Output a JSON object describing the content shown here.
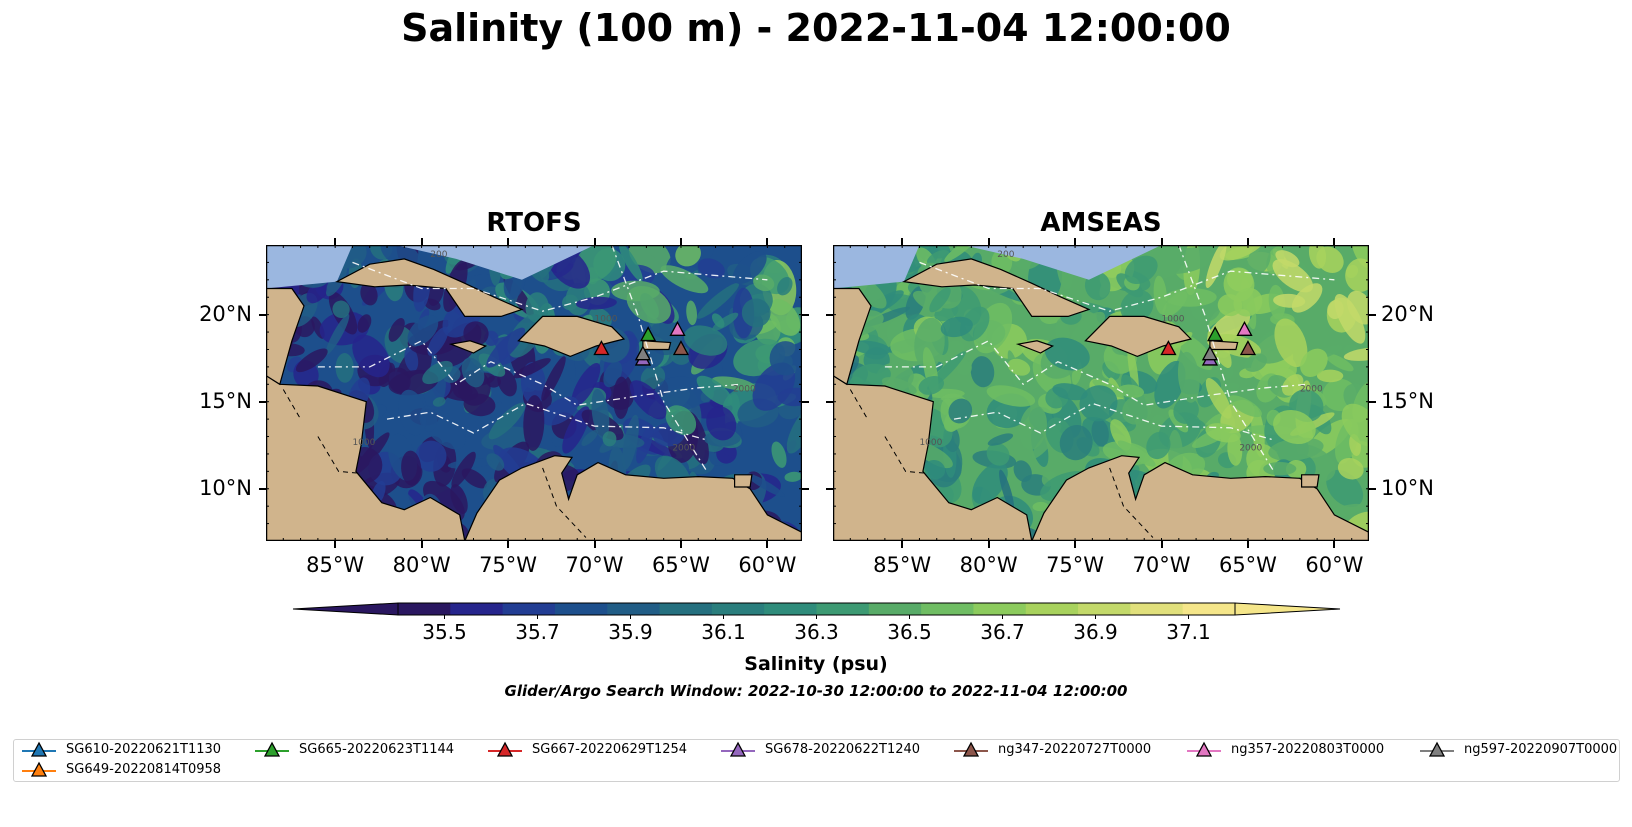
{
  "title": "Salinity (100 m) - 2022-11-04 12:00:00",
  "panels": [
    {
      "title": "RTOFS"
    },
    {
      "title": "AMSEAS"
    }
  ],
  "axes": {
    "x_ticks": [
      "85°W",
      "80°W",
      "75°W",
      "70°W",
      "65°W",
      "60°W"
    ],
    "y_ticks": [
      "20°N",
      "15°N",
      "10°N"
    ],
    "lon_range": [
      -89,
      -58
    ],
    "lat_range": [
      7,
      24
    ]
  },
  "colorbar": {
    "label": "Salinity (psu)",
    "ticks": [
      "35.5",
      "35.7",
      "35.9",
      "36.1",
      "36.3",
      "36.5",
      "36.7",
      "36.9",
      "37.1"
    ],
    "range": [
      35.4,
      37.2
    ],
    "extend": "both",
    "colors": [
      "#2a1760",
      "#26258c",
      "#223d93",
      "#1d4f8c",
      "#215d86",
      "#25707f",
      "#2a7e7d",
      "#2f8c7b",
      "#3d9a73",
      "#58ab68",
      "#6fbd63",
      "#8ccb5d",
      "#a8d25d",
      "#c3d96a",
      "#e1e07c",
      "#f5e68a"
    ]
  },
  "contour_labels": [
    "200",
    "1000",
    "2000",
    "1000",
    "2000"
  ],
  "search_window": "Glider/Argo Search Window: 2022-10-30 12:00:00 to 2022-11-04 12:00:00",
  "colors": {
    "land": "#d0b48c",
    "ocean_fill": "#9bb7e0",
    "coast": "#000000"
  },
  "legend": [
    {
      "label": "SG610-20220621T1130",
      "color": "#1f77b4",
      "icon": "triangle-marker-icon"
    },
    {
      "label": "SG665-20220623T1144",
      "color": "#2ca02c",
      "icon": "triangle-marker-icon"
    },
    {
      "label": "SG667-20220629T1254",
      "color": "#d62728",
      "icon": "triangle-marker-icon"
    },
    {
      "label": "SG678-20220622T1240",
      "color": "#9467bd",
      "icon": "triangle-marker-icon"
    },
    {
      "label": "ng347-20220727T0000",
      "color": "#8c564b",
      "icon": "triangle-marker-icon"
    },
    {
      "label": "ng357-20220803T0000",
      "color": "#e377c2",
      "icon": "triangle-marker-icon"
    },
    {
      "label": "ng597-20220907T0000",
      "color": "#7f7f7f",
      "icon": "triangle-marker-icon"
    },
    {
      "label": "SG649-20220814T0958",
      "color": "#ff7f0e",
      "icon": "triangle-marker-icon"
    }
  ],
  "markers": [
    {
      "glider": "SG667-20220629T1254",
      "color": "#d62728",
      "lon": -69.6,
      "lat": 18.0
    },
    {
      "glider": "SG665-20220623T1144",
      "color": "#2ca02c",
      "lon": -66.9,
      "lat": 18.8
    },
    {
      "glider": "ng357-20220803T0000",
      "color": "#e377c2",
      "lon": -65.2,
      "lat": 19.1
    },
    {
      "glider": "SG678-20220622T1240",
      "color": "#9467bd",
      "lon": -67.2,
      "lat": 17.4
    },
    {
      "glider": "ng597-20220907T0000",
      "color": "#7f7f7f",
      "lon": -67.2,
      "lat": 17.7
    },
    {
      "glider": "ng347-20220727T0000",
      "color": "#8c564b",
      "lon": -65.0,
      "lat": 18.0
    }
  ]
}
